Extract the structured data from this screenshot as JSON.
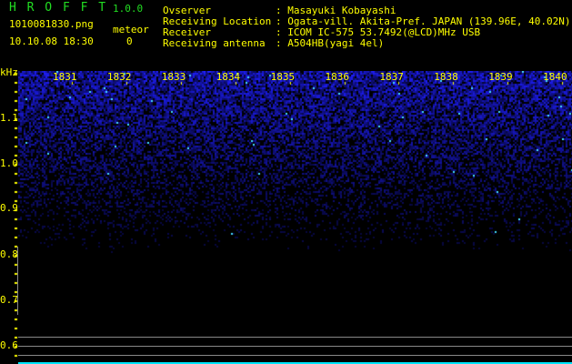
{
  "app": {
    "title": "H R O F F T",
    "version": "1.0.0"
  },
  "file": {
    "name": "1010081830.png",
    "datetime": "10.10.08 18:30"
  },
  "meteor": {
    "label": "meteor",
    "count": "0"
  },
  "info": [
    {
      "label": "Ovserver",
      "value": ": Masayuki Kobayashi"
    },
    {
      "label": "Receiving Location",
      "value": ": Ogata-vill. Akita-Pref. JAPAN (139.96E, 40.02N)"
    },
    {
      "label": "Receiver",
      "value": ": ICOM IC-575 53.7492(@LCD)MHz USB"
    },
    {
      "label": "Receiving antenna",
      "value": ": A504HB(yagi 4el)"
    }
  ],
  "spectrogram": {
    "unit": "kHz",
    "y_ticks": [
      "1.1",
      "1.0",
      "0.9",
      "0.8",
      "0.7",
      "0.6"
    ],
    "time_ticks": [
      "1831",
      "1832",
      "1833",
      "1834",
      "1835",
      "1836",
      "1837",
      "1838",
      "1839",
      "1840"
    ],
    "colors": {
      "text": "#ffff00",
      "title": "#22dd22",
      "noise": "#1a1aff",
      "bottom_bar": "#00e5ff",
      "lines": "#888888"
    }
  }
}
